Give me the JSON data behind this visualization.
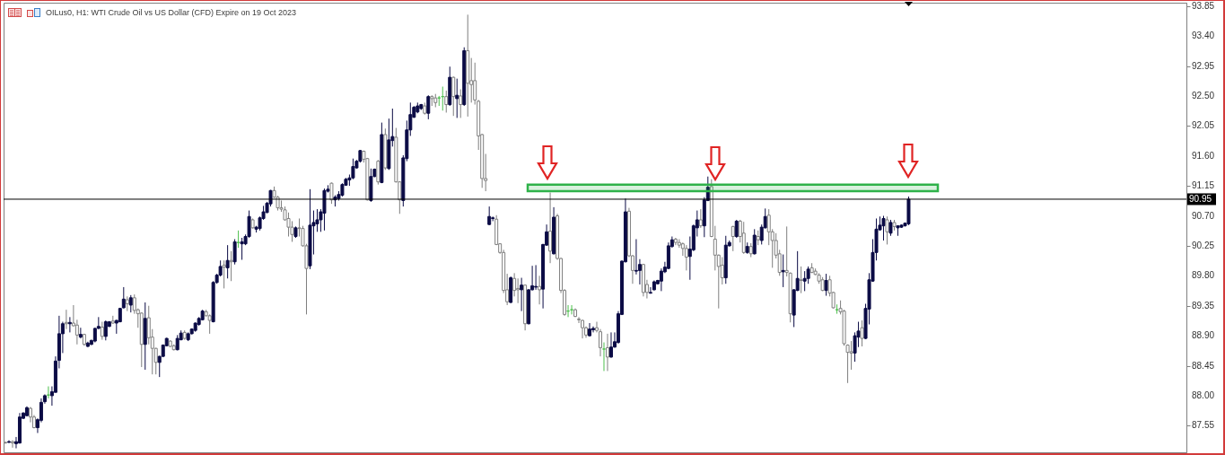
{
  "chart_data": {
    "type": "candlestick",
    "title": "OILus0, H1:  WTI Crude Oil vs US Dollar (CFD) Expire on 19 Oct 2023",
    "categories": [
      null,
      null,
      null,
      null,
      null,
      null,
      null,
      null,
      null,
      null,
      null,
      null,
      null,
      null,
      null,
      null,
      null,
      null,
      null,
      null,
      null,
      null,
      null,
      null,
      null,
      null,
      null,
      null,
      null,
      null,
      null,
      null,
      null,
      null,
      null,
      null,
      null,
      null,
      null,
      null,
      null,
      null,
      null,
      null,
      null,
      null,
      null,
      null,
      null,
      null,
      null,
      null,
      null,
      null,
      null,
      null,
      null,
      null,
      null,
      null,
      null,
      null,
      null,
      null,
      null,
      null,
      null,
      null,
      null,
      null,
      null,
      null,
      null,
      null,
      null,
      null,
      null,
      null,
      null,
      null,
      null,
      null,
      null,
      null,
      null,
      null,
      null,
      null,
      null,
      null,
      null,
      null,
      null,
      null,
      null,
      null,
      null,
      null,
      null,
      null,
      null,
      null,
      null,
      null,
      null,
      null,
      null,
      null,
      null,
      null,
      null,
      null,
      null,
      null,
      null,
      null,
      null,
      null,
      null,
      null,
      null,
      null,
      null,
      null,
      null,
      null,
      null,
      null,
      null,
      null,
      null,
      null,
      null,
      null,
      null,
      null,
      null,
      null,
      null,
      null,
      null,
      null,
      null,
      null,
      null,
      null,
      null,
      null,
      null,
      null,
      null,
      null,
      null,
      null,
      null,
      null,
      null,
      null,
      null,
      null,
      null,
      null,
      null,
      null,
      null,
      null,
      null,
      null,
      null,
      null,
      null,
      null,
      null,
      null,
      null,
      null,
      null,
      null,
      null,
      null,
      null,
      null,
      null,
      null,
      null,
      null,
      null,
      null,
      null,
      null,
      null,
      null,
      null,
      null,
      null,
      null,
      null,
      null,
      null,
      null,
      null,
      null,
      null,
      null,
      null,
      null,
      null,
      null,
      null,
      null,
      null,
      null,
      null,
      null,
      null,
      null,
      null,
      null,
      null,
      null,
      null,
      null,
      null,
      null,
      null,
      null,
      null,
      null,
      null,
      null,
      null,
      null,
      null,
      null,
      null,
      null,
      null,
      null,
      null,
      null,
      null,
      null,
      null,
      null,
      null,
      null,
      null,
      null,
      null,
      null,
      null,
      null,
      null,
      null,
      null,
      null,
      null,
      null,
      null,
      null,
      null,
      null,
      null,
      null,
      null,
      null,
      null,
      null,
      null,
      null,
      null,
      null,
      null,
      null,
      null,
      null,
      null,
      null,
      null,
      null,
      null,
      null,
      null,
      null,
      null,
      null,
      null,
      null,
      null,
      null,
      null,
      null,
      null,
      null,
      null,
      null,
      null,
      null,
      null,
      null,
      null,
      null,
      null,
      null,
      null,
      null,
      null,
      null,
      null,
      null,
      null,
      null,
      null,
      null,
      null,
      null,
      null,
      null,
      null,
      null,
      null,
      null,
      null,
      null,
      null,
      null,
      null,
      null,
      null,
      null
    ],
    "ohlc": [
      [
        87.3,
        87.31,
        87.28,
        87.29
      ],
      [
        87.3,
        87.33,
        87.29,
        87.31
      ],
      [
        87.31,
        87.33,
        87.22,
        87.29
      ],
      [
        87.28,
        87.38,
        87.21,
        87.31
      ],
      [
        87.29,
        87.74,
        87.28,
        87.68
      ],
      [
        87.66,
        87.75,
        87.65,
        87.74
      ],
      [
        87.7,
        87.84,
        87.69,
        87.82
      ],
      [
        87.81,
        87.83,
        87.6,
        87.68
      ],
      [
        87.68,
        87.71,
        87.51,
        87.52
      ],
      [
        87.52,
        87.66,
        87.44,
        87.64
      ],
      [
        87.63,
        87.96,
        87.6,
        87.9
      ],
      [
        87.91,
        88.02,
        87.88,
        88.0
      ],
      [
        88.01,
        88.14,
        87.96,
        88.01
      ],
      [
        88.0,
        88.14,
        87.85,
        88.06
      ],
      [
        88.05,
        88.59,
        88.05,
        88.52
      ],
      [
        88.53,
        89.2,
        88.41,
        88.93
      ],
      [
        88.93,
        89.11,
        88.64,
        89.08
      ],
      [
        89.1,
        89.29,
        89.0,
        89.08
      ],
      [
        89.08,
        89.18,
        88.95,
        89.1
      ],
      [
        89.09,
        89.36,
        89.04,
        89.05
      ],
      [
        89.06,
        89.14,
        88.77,
        88.91
      ],
      [
        88.88,
        89.02,
        88.86,
        88.92
      ],
      [
        88.92,
        88.93,
        88.75,
        88.77
      ],
      [
        88.74,
        88.81,
        88.73,
        88.79
      ],
      [
        88.77,
        88.84,
        88.76,
        88.83
      ],
      [
        88.82,
        89.02,
        88.8,
        89.01
      ],
      [
        89.01,
        89.18,
        89.0,
        89.04
      ],
      [
        89.03,
        89.11,
        88.84,
        88.89
      ],
      [
        88.89,
        89.13,
        88.83,
        89.11
      ],
      [
        89.04,
        89.12,
        89.03,
        89.11
      ],
      [
        89.12,
        89.2,
        89.08,
        89.09
      ],
      [
        89.09,
        89.14,
        88.93,
        89.13
      ],
      [
        89.11,
        89.32,
        89.1,
        89.31
      ],
      [
        89.32,
        89.63,
        89.31,
        89.45
      ],
      [
        89.44,
        89.49,
        89.27,
        89.38
      ],
      [
        89.36,
        89.51,
        89.25,
        89.47
      ],
      [
        89.47,
        89.52,
        89.23,
        89.28
      ],
      [
        89.29,
        89.31,
        89.02,
        89.23
      ],
      [
        89.24,
        89.25,
        88.43,
        88.77
      ],
      [
        88.77,
        89.4,
        88.39,
        89.16
      ],
      [
        89.17,
        89.35,
        88.77,
        88.87
      ],
      [
        88.88,
        89.0,
        88.32,
        88.71
      ],
      [
        88.71,
        88.72,
        88.32,
        88.5
      ],
      [
        88.5,
        88.6,
        88.28,
        88.59
      ],
      [
        88.59,
        88.77,
        88.58,
        88.76
      ],
      [
        88.75,
        88.87,
        88.74,
        88.86
      ],
      [
        88.82,
        88.83,
        88.73,
        88.74
      ],
      [
        88.75,
        88.77,
        88.68,
        88.69
      ],
      [
        88.69,
        88.91,
        88.68,
        88.86
      ],
      [
        88.84,
        88.98,
        88.83,
        88.94
      ],
      [
        88.95,
        88.98,
        88.84,
        88.86
      ],
      [
        88.84,
        88.95,
        88.82,
        88.93
      ],
      [
        88.93,
        89.01,
        88.92,
        89.0
      ],
      [
        88.98,
        89.1,
        88.96,
        89.09
      ],
      [
        89.07,
        89.18,
        89.05,
        89.16
      ],
      [
        89.14,
        89.29,
        89.13,
        89.27
      ],
      [
        89.26,
        89.29,
        89.19,
        89.2
      ],
      [
        89.2,
        89.22,
        88.93,
        89.13
      ],
      [
        89.11,
        89.72,
        89.1,
        89.7
      ],
      [
        89.7,
        89.83,
        89.68,
        89.81
      ],
      [
        89.81,
        90.03,
        89.79,
        89.94
      ],
      [
        89.96,
        90.03,
        89.61,
        89.93
      ],
      [
        89.92,
        90.26,
        89.76,
        90.03
      ],
      [
        90.03,
        90.17,
        89.72,
        90.01
      ],
      [
        90.01,
        90.35,
        89.97,
        90.31
      ],
      [
        90.3,
        90.48,
        90.22,
        90.3
      ],
      [
        90.28,
        90.37,
        90.04,
        90.31
      ],
      [
        90.28,
        90.42,
        90.26,
        90.39
      ],
      [
        90.39,
        90.78,
        90.37,
        90.69
      ],
      [
        90.64,
        90.66,
        90.51,
        90.52
      ],
      [
        90.5,
        90.55,
        90.45,
        90.53
      ],
      [
        90.51,
        90.69,
        90.48,
        90.67
      ],
      [
        90.66,
        90.85,
        90.64,
        90.76
      ],
      [
        90.75,
        90.91,
        90.74,
        90.89
      ],
      [
        90.88,
        91.09,
        90.84,
        91.08
      ],
      [
        91.08,
        91.14,
        90.97,
        90.98
      ],
      [
        90.98,
        91.0,
        90.78,
        90.82
      ],
      [
        90.82,
        90.93,
        90.76,
        90.8
      ],
      [
        90.79,
        90.84,
        90.63,
        90.64
      ],
      [
        90.66,
        90.75,
        90.39,
        90.53
      ],
      [
        90.53,
        90.62,
        90.31,
        90.42
      ],
      [
        90.39,
        90.54,
        90.37,
        90.52
      ],
      [
        90.52,
        90.66,
        90.39,
        90.51
      ],
      [
        90.51,
        90.55,
        90.24,
        90.25
      ],
      [
        90.25,
        90.28,
        89.22,
        89.91
      ],
      [
        89.95,
        91.1,
        89.9,
        90.56
      ],
      [
        90.55,
        90.78,
        90.12,
        90.6
      ],
      [
        90.58,
        90.8,
        90.46,
        90.64
      ],
      [
        90.64,
        90.8,
        90.46,
        90.76
      ],
      [
        90.74,
        91.11,
        90.48,
        91.08
      ],
      [
        91.07,
        91.16,
        91.05,
        91.1
      ],
      [
        91.19,
        91.2,
        90.88,
        90.94
      ],
      [
        90.94,
        91.01,
        90.84,
        90.98
      ],
      [
        90.96,
        91.07,
        90.93,
        91.02
      ],
      [
        91.01,
        91.19,
        90.99,
        91.17
      ],
      [
        91.16,
        91.27,
        91.15,
        91.25
      ],
      [
        91.24,
        91.32,
        91.15,
        91.27
      ],
      [
        91.27,
        91.56,
        91.25,
        91.44
      ],
      [
        91.42,
        91.54,
        91.41,
        91.52
      ],
      [
        91.52,
        91.69,
        91.5,
        91.68
      ],
      [
        91.67,
        91.68,
        91.5,
        91.55
      ],
      [
        91.56,
        91.57,
        90.93,
        90.94
      ],
      [
        90.93,
        91.41,
        90.91,
        91.29
      ],
      [
        91.29,
        91.41,
        91.28,
        91.4
      ],
      [
        91.52,
        91.54,
        91.17,
        91.21
      ],
      [
        91.2,
        92.1,
        91.19,
        91.92
      ],
      [
        91.92,
        92.01,
        91.39,
        91.42
      ],
      [
        91.41,
        92.16,
        91.39,
        91.84
      ],
      [
        91.83,
        92.31,
        91.74,
        91.89
      ],
      [
        91.88,
        92.02,
        91.2,
        91.21
      ],
      [
        91.21,
        91.22,
        90.73,
        90.94
      ],
      [
        90.93,
        91.61,
        90.84,
        91.57
      ],
      [
        91.56,
        92.13,
        91.52,
        91.99
      ],
      [
        91.99,
        92.4,
        91.9,
        92.22
      ],
      [
        92.18,
        92.35,
        92.17,
        92.33
      ],
      [
        92.26,
        92.4,
        92.24,
        92.35
      ],
      [
        92.31,
        92.38,
        92.29,
        92.37
      ],
      [
        92.35,
        92.4,
        92.22,
        92.24
      ],
      [
        92.24,
        92.51,
        92.15,
        92.49
      ],
      [
        92.49,
        92.51,
        92.35,
        92.46
      ],
      [
        92.47,
        92.53,
        92.33,
        92.4
      ],
      [
        92.47,
        92.5,
        92.35,
        92.47
      ],
      [
        92.49,
        92.64,
        92.28,
        92.49
      ],
      [
        92.49,
        92.58,
        92.25,
        92.37
      ],
      [
        92.37,
        92.94,
        92.35,
        92.78
      ],
      [
        92.78,
        92.79,
        92.2,
        92.49
      ],
      [
        92.46,
        92.76,
        92.17,
        92.51
      ],
      [
        92.5,
        92.6,
        92.17,
        92.37
      ],
      [
        92.37,
        93.23,
        92.35,
        93.18
      ],
      [
        93.18,
        93.72,
        92.19,
        92.69
      ],
      [
        92.73,
        93.07,
        92.4,
        92.67
      ],
      [
        92.73,
        93.0,
        92.37,
        92.44
      ],
      [
        92.42,
        92.44,
        91.69,
        91.9
      ],
      [
        91.92,
        91.93,
        91.12,
        91.26
      ],
      [
        91.26,
        91.63,
        91.07,
        91.23
      ],
      [
        90.57,
        90.84,
        90.56,
        90.69
      ],
      [
        90.66,
        90.69,
        90.62,
        90.67
      ],
      [
        90.65,
        90.71,
        90.26,
        90.27
      ],
      [
        90.28,
        90.29,
        90.13,
        90.15
      ],
      [
        90.15,
        90.19,
        89.54,
        89.58
      ],
      [
        89.59,
        89.83,
        89.36,
        89.41
      ],
      [
        89.4,
        89.79,
        89.39,
        89.77
      ],
      [
        89.76,
        89.84,
        89.49,
        89.58
      ],
      [
        89.61,
        89.76,
        89.39,
        89.59
      ],
      [
        89.59,
        89.77,
        89.27,
        89.66
      ],
      [
        89.66,
        89.67,
        88.98,
        89.08
      ],
      [
        89.08,
        89.6,
        89.07,
        89.59
      ],
      [
        89.59,
        89.95,
        89.58,
        89.65
      ],
      [
        89.63,
        89.96,
        89.59,
        89.64
      ],
      [
        89.64,
        89.8,
        89.37,
        89.59
      ],
      [
        89.6,
        90.28,
        89.31,
        90.27
      ],
      [
        90.26,
        90.57,
        90.25,
        90.46
      ],
      [
        90.47,
        91.05,
        89.99,
        90.17
      ],
      [
        90.13,
        90.83,
        90.12,
        90.68
      ],
      [
        90.7,
        90.73,
        90.04,
        90.06
      ],
      [
        90.06,
        90.07,
        89.54,
        89.58
      ],
      [
        89.58,
        89.6,
        89.2,
        89.22
      ],
      [
        89.27,
        89.36,
        89.18,
        89.27
      ],
      [
        89.29,
        89.36,
        89.22,
        89.29
      ],
      [
        89.29,
        89.31,
        89.18,
        89.19
      ],
      [
        89.15,
        89.18,
        89.09,
        89.14
      ],
      [
        89.13,
        89.14,
        88.86,
        89.02
      ],
      [
        89.02,
        89.04,
        88.87,
        88.91
      ],
      [
        88.9,
        89.09,
        88.89,
        89.0
      ],
      [
        88.99,
        89.04,
        88.95,
        89.01
      ],
      [
        89.02,
        89.11,
        88.95,
        88.98
      ],
      [
        88.96,
        89.0,
        88.59,
        88.72
      ],
      [
        88.7,
        88.8,
        88.37,
        88.7
      ],
      [
        88.72,
        88.93,
        88.37,
        88.58
      ],
      [
        88.58,
        88.95,
        88.57,
        88.73
      ],
      [
        88.73,
        88.95,
        88.72,
        88.81
      ],
      [
        88.8,
        89.27,
        88.78,
        89.23
      ],
      [
        89.22,
        90.03,
        89.21,
        90.02
      ],
      [
        90.01,
        90.96,
        90.0,
        90.76
      ],
      [
        90.77,
        90.82,
        90.08,
        90.1
      ],
      [
        90.1,
        90.11,
        89.68,
        89.88
      ],
      [
        89.87,
        90.35,
        89.82,
        89.88
      ],
      [
        89.88,
        90.05,
        89.67,
        89.97
      ],
      [
        89.97,
        89.98,
        89.49,
        89.55
      ],
      [
        89.67,
        89.74,
        89.46,
        89.55
      ],
      [
        89.54,
        89.63,
        89.53,
        89.55
      ],
      [
        89.59,
        89.73,
        89.58,
        89.71
      ],
      [
        89.68,
        89.74,
        89.67,
        89.73
      ],
      [
        89.72,
        89.91,
        89.57,
        89.87
      ],
      [
        89.86,
        90.01,
        89.84,
        89.93
      ],
      [
        89.91,
        90.3,
        89.9,
        90.25
      ],
      [
        90.24,
        90.39,
        90.22,
        90.34
      ],
      [
        90.35,
        90.37,
        90.26,
        90.3
      ],
      [
        90.3,
        90.35,
        90.22,
        90.26
      ],
      [
        90.28,
        90.3,
        90.1,
        90.21
      ],
      [
        90.21,
        90.26,
        89.88,
        90.08
      ],
      [
        90.09,
        90.39,
        89.74,
        90.2
      ],
      [
        90.19,
        90.57,
        90.17,
        90.55
      ],
      [
        90.52,
        90.78,
        90.39,
        90.64
      ],
      [
        90.64,
        90.8,
        90.52,
        90.55
      ],
      [
        90.55,
        90.98,
        90.38,
        90.94
      ],
      [
        90.93,
        91.29,
        90.92,
        91.13
      ],
      [
        91.14,
        91.25,
        90.38,
        90.39
      ],
      [
        90.35,
        90.55,
        89.88,
        90.11
      ],
      [
        90.11,
        90.12,
        89.31,
        89.94
      ],
      [
        89.96,
        90.08,
        89.67,
        89.77
      ],
      [
        89.77,
        90.4,
        89.68,
        90.26
      ],
      [
        90.25,
        90.33,
        90.24,
        90.3
      ],
      [
        90.54,
        90.55,
        90.17,
        90.39
      ],
      [
        90.39,
        90.64,
        90.37,
        90.62
      ],
      [
        90.62,
        90.64,
        90.3,
        90.39
      ],
      [
        90.44,
        90.61,
        90.13,
        90.15
      ],
      [
        90.15,
        90.3,
        90.13,
        90.24
      ],
      [
        90.24,
        90.29,
        90.08,
        90.13
      ],
      [
        90.13,
        90.5,
        90.12,
        90.41
      ],
      [
        90.39,
        90.48,
        90.26,
        90.34
      ],
      [
        90.33,
        90.57,
        90.27,
        90.53
      ],
      [
        90.52,
        90.81,
        90.51,
        90.69
      ],
      [
        90.71,
        90.8,
        90.26,
        90.46
      ],
      [
        90.46,
        90.5,
        89.92,
        90.33
      ],
      [
        90.33,
        90.44,
        90.06,
        90.11
      ],
      [
        90.13,
        90.19,
        89.8,
        89.85
      ],
      [
        89.86,
        90.12,
        89.63,
        89.88
      ],
      [
        89.88,
        90.54,
        89.79,
        89.85
      ],
      [
        89.84,
        89.85,
        89.1,
        89.23
      ],
      [
        89.21,
        89.6,
        89.03,
        89.59
      ],
      [
        89.58,
        90.17,
        89.57,
        89.76
      ],
      [
        89.74,
        89.94,
        89.54,
        89.73
      ],
      [
        89.72,
        89.87,
        89.57,
        89.76
      ],
      [
        89.76,
        89.94,
        89.68,
        89.9
      ],
      [
        89.92,
        89.99,
        89.84,
        89.85
      ],
      [
        89.87,
        89.91,
        89.81,
        89.82
      ],
      [
        89.81,
        89.84,
        89.68,
        89.72
      ],
      [
        89.74,
        89.78,
        89.57,
        89.58
      ],
      [
        89.58,
        89.83,
        89.5,
        89.73
      ],
      [
        89.74,
        89.8,
        89.49,
        89.54
      ],
      [
        89.55,
        89.56,
        89.31,
        89.32
      ],
      [
        89.29,
        89.37,
        89.23,
        89.29
      ],
      [
        89.31,
        89.43,
        89.22,
        89.26
      ],
      [
        89.27,
        89.29,
        88.75,
        88.78
      ],
      [
        88.76,
        88.77,
        88.19,
        88.65
      ],
      [
        88.66,
        88.82,
        88.39,
        88.64
      ],
      [
        88.64,
        88.95,
        88.51,
        88.9
      ],
      [
        88.88,
        89.11,
        88.73,
        88.97
      ],
      [
        89.02,
        89.13,
        88.74,
        88.86
      ],
      [
        88.86,
        89.38,
        88.85,
        89.31
      ],
      [
        89.3,
        89.84,
        89.07,
        89.74
      ],
      [
        89.72,
        90.35,
        89.71,
        90.15
      ],
      [
        90.15,
        90.66,
        90.03,
        90.5
      ],
      [
        90.49,
        90.69,
        90.48,
        90.56
      ],
      [
        90.55,
        90.7,
        90.33,
        90.66
      ],
      [
        90.64,
        90.69,
        90.27,
        90.46
      ],
      [
        90.44,
        90.64,
        90.4,
        90.6
      ],
      [
        90.6,
        90.64,
        90.48,
        90.54
      ],
      [
        90.52,
        90.55,
        90.4,
        90.55
      ],
      [
        90.53,
        90.57,
        90.52,
        90.56
      ],
      [
        90.55,
        90.6,
        90.54,
        90.59
      ],
      [
        90.58,
        90.99,
        90.56,
        90.95
      ],
      null,
      null,
      null,
      null,
      null,
      null,
      null,
      null,
      null,
      null,
      null,
      null,
      null,
      null,
      null,
      null,
      null,
      null,
      null,
      null,
      null,
      null,
      null,
      null,
      null,
      null,
      null,
      null,
      null,
      null,
      null,
      null,
      null,
      null,
      null,
      null,
      null,
      null,
      null,
      null,
      null,
      null,
      null,
      null,
      null,
      null,
      null,
      null,
      null,
      null,
      null,
      null,
      null,
      null,
      null,
      null,
      null,
      null,
      null,
      null,
      null,
      null,
      null,
      null,
      null,
      null,
      null,
      null,
      null,
      null,
      null,
      null,
      null,
      null,
      null,
      null,
      null
    ],
    "colors": [
      "#7f7f7f",
      "#0b0b45",
      "#7f7f7f",
      "#0b0b45",
      "#0b0b45",
      "#0b0b45",
      "#0b0b45",
      "#7f7f7f",
      "#7f7f7f",
      "#0b0b45",
      "#0b0b45",
      "#0b0b45",
      "#4cbf4c",
      "#0b0b45",
      "#0b0b45",
      "#0b0b45",
      "#0b0b45",
      "#7f7f7f",
      "#0b0b45",
      "#7f7f7f",
      "#7f7f7f",
      "#0b0b45",
      "#7f7f7f",
      "#0b0b45",
      "#0b0b45",
      "#0b0b45",
      "#0b0b45",
      "#7f7f7f",
      "#0b0b45",
      "#0b0b45",
      "#7f7f7f",
      "#0b0b45",
      "#0b0b45",
      "#0b0b45",
      "#7f7f7f",
      "#0b0b45",
      "#7f7f7f",
      "#7f7f7f",
      "#7f7f7f",
      "#0b0b45",
      "#7f7f7f",
      "#7f7f7f",
      "#7f7f7f",
      "#0b0b45",
      "#0b0b45",
      "#0b0b45",
      "#7f7f7f",
      "#7f7f7f",
      "#0b0b45",
      "#0b0b45",
      "#7f7f7f",
      "#0b0b45",
      "#0b0b45",
      "#0b0b45",
      "#0b0b45",
      "#0b0b45",
      "#7f7f7f",
      "#7f7f7f",
      "#0b0b45",
      "#0b0b45",
      "#0b0b45",
      "#7f7f7f",
      "#0b0b45",
      "#7f7f7f",
      "#0b0b45",
      "#4cbf4c",
      "#0b0b45",
      "#0b0b45",
      "#0b0b45",
      "#7f7f7f",
      "#0b0b45",
      "#0b0b45",
      "#0b0b45",
      "#0b0b45",
      "#0b0b45",
      "#7f7f7f",
      "#7f7f7f",
      "#7f7f7f",
      "#7f7f7f",
      "#7f7f7f",
      "#7f7f7f",
      "#0b0b45",
      "#7f7f7f",
      "#7f7f7f",
      "#7f7f7f",
      "#0b0b45",
      "#0b0b45",
      "#0b0b45",
      "#0b0b45",
      "#0b0b45",
      "#0b0b45",
      "#7f7f7f",
      "#0b0b45",
      "#0b0b45",
      "#0b0b45",
      "#0b0b45",
      "#0b0b45",
      "#0b0b45",
      "#0b0b45",
      "#0b0b45",
      "#7f7f7f",
      "#7f7f7f",
      "#0b0b45",
      "#0b0b45",
      "#7f7f7f",
      "#0b0b45",
      "#7f7f7f",
      "#0b0b45",
      "#0b0b45",
      "#7f7f7f",
      "#7f7f7f",
      "#0b0b45",
      "#0b0b45",
      "#0b0b45",
      "#0b0b45",
      "#0b0b45",
      "#0b0b45",
      "#7f7f7f",
      "#0b0b45",
      "#7f7f7f",
      "#7f7f7f",
      "#4cbf4c",
      "#4cbf4c",
      "#7f7f7f",
      "#0b0b45",
      "#7f7f7f",
      "#0b0b45",
      "#7f7f7f",
      "#0b0b45",
      "#7f7f7f",
      "#7f7f7f",
      "#7f7f7f",
      "#7f7f7f",
      "#7f7f7f",
      "#7f7f7f",
      "#0b0b45",
      "#0b0b45",
      "#7f7f7f",
      "#7f7f7f",
      "#7f7f7f",
      "#7f7f7f",
      "#0b0b45",
      "#7f7f7f",
      "#7f7f7f",
      "#0b0b45",
      "#7f7f7f",
      "#0b0b45",
      "#0b0b45",
      "#0b0b45",
      "#7f7f7f",
      "#0b0b45",
      "#0b0b45",
      "#7f7f7f",
      "#0b0b45",
      "#7f7f7f",
      "#7f7f7f",
      "#7f7f7f",
      "#4cbf4c",
      "#4cbf4c",
      "#7f7f7f",
      "#7f7f7f",
      "#7f7f7f",
      "#7f7f7f",
      "#0b0b45",
      "#0b0b45",
      "#7f7f7f",
      "#7f7f7f",
      "#4cbf4c",
      "#7f7f7f",
      "#0b0b45",
      "#0b0b45",
      "#0b0b45",
      "#0b0b45",
      "#0b0b45",
      "#7f7f7f",
      "#7f7f7f",
      "#0b0b45",
      "#0b0b45",
      "#7f7f7f",
      "#7f7f7f",
      "#0b0b45",
      "#0b0b45",
      "#0b0b45",
      "#0b0b45",
      "#0b0b45",
      "#0b0b45",
      "#0b0b45",
      "#7f7f7f",
      "#7f7f7f",
      "#7f7f7f",
      "#7f7f7f",
      "#0b0b45",
      "#0b0b45",
      "#0b0b45",
      "#7f7f7f",
      "#0b0b45",
      "#0b0b45",
      "#7f7f7f",
      "#7f7f7f",
      "#7f7f7f",
      "#7f7f7f",
      "#0b0b45",
      "#0b0b45",
      "#7f7f7f",
      "#0b0b45",
      "#7f7f7f",
      "#7f7f7f",
      "#0b0b45",
      "#7f7f7f",
      "#0b0b45",
      "#7f7f7f",
      "#0b0b45",
      "#0b0b45",
      "#7f7f7f",
      "#7f7f7f",
      "#7f7f7f",
      "#7f7f7f",
      "#0b0b45",
      "#7f7f7f",
      "#7f7f7f",
      "#0b0b45",
      "#0b0b45",
      "#7f7f7f",
      "#0b0b45",
      "#0b0b45",
      "#7f7f7f",
      "#7f7f7f",
      "#7f7f7f",
      "#7f7f7f",
      "#0b0b45",
      "#7f7f7f",
      "#7f7f7f",
      "#4cbf4c",
      "#7f7f7f",
      "#7f7f7f",
      "#7f7f7f",
      "#7f7f7f",
      "#0b0b45",
      "#0b0b45",
      "#7f7f7f",
      "#0b0b45",
      "#0b0b45",
      "#0b0b45",
      "#0b0b45",
      "#0b0b45",
      "#0b0b45",
      "#7f7f7f",
      "#0b0b45",
      "#7f7f7f",
      "#0b0b45",
      "#0b0b45",
      "#0b0b45",
      "#0b0b45",
      null,
      null,
      null,
      null,
      null,
      null,
      null,
      null,
      null,
      null,
      null,
      null,
      null,
      null,
      null,
      null,
      null,
      null,
      null,
      null,
      null,
      null,
      null,
      null,
      null,
      null,
      null,
      null,
      null,
      null,
      null,
      null,
      null,
      null,
      null,
      null,
      null,
      null,
      null,
      null,
      null,
      null,
      null,
      null,
      null,
      null,
      null,
      null,
      null,
      null,
      null,
      null,
      null,
      null,
      null,
      null,
      null,
      null,
      null,
      null,
      null,
      null,
      null,
      null,
      null,
      null,
      null,
      null,
      null,
      null,
      null,
      null,
      null,
      null,
      null,
      null,
      null
    ],
    "ylim": [
      87.15,
      93.9
    ],
    "yticks": [
      87.55,
      {
        "value": 88,
        "label": "88.00"
      },
      88.45,
      {
        "value": 88.9,
        "label": "88.90"
      },
      89.35,
      {
        "value": 89.8,
        "label": "89.80"
      },
      90.25,
      {
        "value": 90.7,
        "label": "90.70"
      },
      91.15,
      {
        "value": 91.6,
        "label": "91.60"
      },
      92.05,
      {
        "value": 92.5,
        "label": "92.50"
      },
      92.95,
      {
        "value": 93.4,
        "label": "93.40"
      },
      93.85
    ],
    "tick_labels": "y",
    "ref_lines": [
      {
        "axis": "y",
        "value": 90.95,
        "label": "90.95",
        "color": "#000000"
      }
    ],
    "bands": [
      {
        "axis": "y",
        "from": 91.07,
        "to": 91.17,
        "color": "#2fb24a"
      }
    ]
  }
}
